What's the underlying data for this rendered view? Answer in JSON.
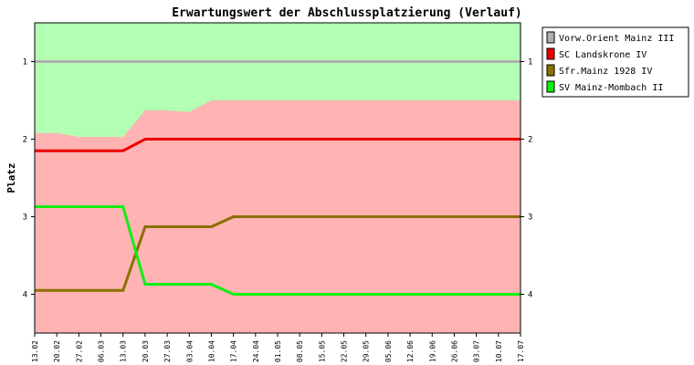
{
  "chart_data": {
    "type": "line",
    "title": "Erwartungswert der Abschlussplatzierung (Verlauf)",
    "ylabel": "Platz",
    "xlabel": "",
    "y_inverted": true,
    "ylim": [
      0.5,
      4.5
    ],
    "yticks": [
      1,
      2,
      3,
      4
    ],
    "grid": false,
    "legend_position": "top-right",
    "categories": [
      "13.02",
      "20.02",
      "27.02",
      "06.03",
      "13.03",
      "20.03",
      "27.03",
      "03.04",
      "10.04",
      "17.04",
      "24.04",
      "01.05",
      "08.05",
      "15.05",
      "22.05",
      "29.05",
      "05.06",
      "12.06",
      "19.06",
      "26.06",
      "03.07",
      "10.07",
      "17.07"
    ],
    "background_bands": {
      "boundary_values": [
        1.92,
        1.92,
        1.97,
        1.97,
        1.97,
        1.63,
        1.63,
        1.65,
        1.5,
        1.5,
        1.5,
        1.5,
        1.5,
        1.5,
        1.5,
        1.5,
        1.5,
        1.5,
        1.5,
        1.5,
        1.5,
        1.5,
        1.5
      ],
      "upper_color": "#b3ffb3",
      "lower_color": "#ffb3b3"
    },
    "series": [
      {
        "name": "Vorw.Orient Mainz   III",
        "color": "#b0b0b0",
        "values": [
          1,
          1,
          1,
          1,
          1,
          1,
          1,
          1,
          1,
          1,
          1,
          1,
          1,
          1,
          1,
          1,
          1,
          1,
          1,
          1,
          1,
          1,
          1
        ]
      },
      {
        "name": "SC Landskrone   IV",
        "color": "#ee0000",
        "values": [
          2.15,
          2.15,
          2.15,
          2.15,
          2.15,
          2,
          2,
          2,
          2,
          2,
          2,
          2,
          2,
          2,
          2,
          2,
          2,
          2,
          2,
          2,
          2,
          2,
          2
        ]
      },
      {
        "name": "Sfr.Mainz 1928   IV",
        "color": "#8b6f00",
        "values": [
          3.95,
          3.95,
          3.95,
          3.95,
          3.95,
          3.13,
          3.13,
          3.13,
          3.13,
          3,
          3,
          3,
          3,
          3,
          3,
          3,
          3,
          3,
          3,
          3,
          3,
          3,
          3
        ]
      },
      {
        "name": "SV Mainz-Mombach   II",
        "color": "#11ee11",
        "values": [
          2.87,
          2.87,
          2.87,
          2.87,
          2.87,
          3.87,
          3.87,
          3.87,
          3.87,
          4,
          4,
          4,
          4,
          4,
          4,
          4,
          4,
          4,
          4,
          4,
          4,
          4,
          4
        ]
      }
    ]
  }
}
